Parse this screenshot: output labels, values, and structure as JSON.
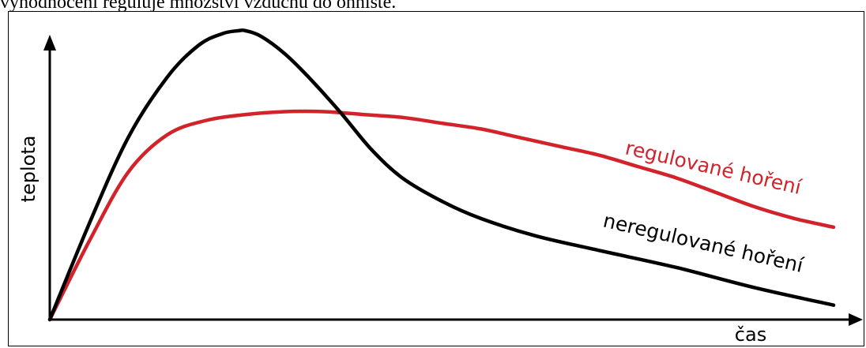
{
  "caption": "vyhodnocení reguluje množství vzduchu do ohniště.",
  "chart_data": {
    "type": "line",
    "xlabel": "čas",
    "ylabel": "teplota",
    "xlim": [
      0,
      100
    ],
    "ylim": [
      0,
      100
    ],
    "grid": false,
    "series": [
      {
        "name": "neregulované hoření",
        "color": "#000000",
        "x": [
          0,
          5,
          10,
          15,
          19,
          22,
          24,
          25,
          27,
          30,
          33,
          37,
          41,
          45,
          50,
          55,
          62,
          70,
          80,
          90,
          100
        ],
        "y": [
          0,
          33,
          63,
          84,
          95,
          99,
          100,
          100,
          98,
          92,
          84,
          72,
          59,
          49,
          41,
          35,
          29,
          24,
          18,
          11,
          5
        ]
      },
      {
        "name": "regulované hoření",
        "color": "#d2232a",
        "x": [
          0,
          5,
          10,
          15,
          20,
          25,
          30,
          35,
          40,
          45,
          50,
          55,
          60,
          65,
          70,
          75,
          80,
          85,
          90,
          95,
          100
        ],
        "y": [
          0,
          27,
          51,
          64,
          69,
          71,
          72,
          72,
          71,
          70,
          68,
          66,
          63,
          60,
          57,
          53,
          49,
          44,
          39,
          35,
          32
        ]
      }
    ]
  }
}
